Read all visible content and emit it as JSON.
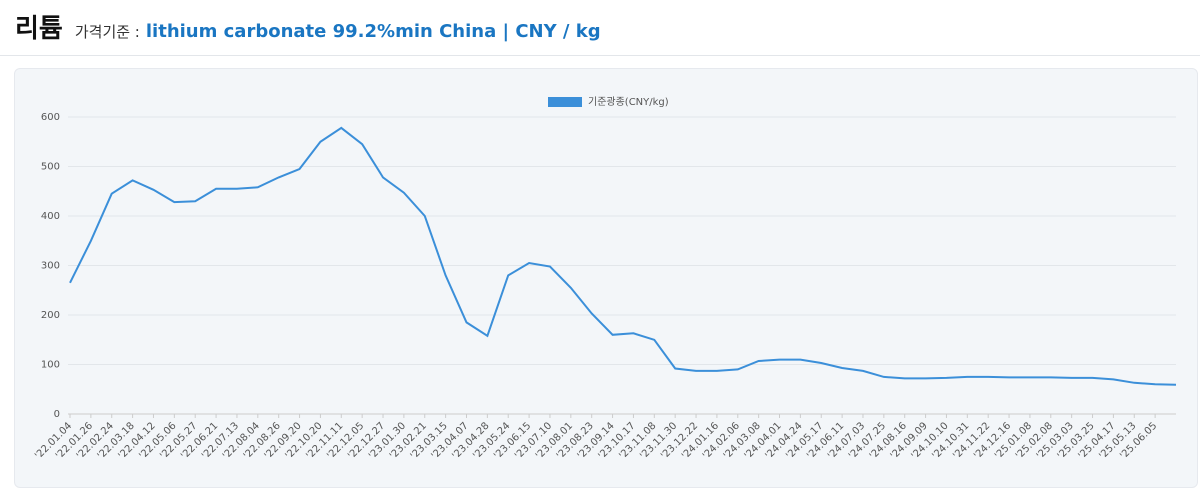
{
  "header": {
    "title": "리튬",
    "label": "가격기준 :",
    "subtitle": "lithium carbonate 99.2%min China | CNY / kg"
  },
  "chart_data": {
    "type": "line",
    "categories": [
      "'22.01.04",
      "'22.01.26",
      "'22.02.24",
      "'22.03.18",
      "'22.04.12",
      "'22.05.06",
      "'22.05.27",
      "'22.06.21",
      "'22.07.13",
      "'22.08.04",
      "'22.08.26",
      "'22.09.20",
      "'22.10.20",
      "'22.11.11",
      "'22.12.05",
      "'22.12.27",
      "'23.01.30",
      "'23.02.21",
      "'23.03.15",
      "'23.04.07",
      "'23.04.28",
      "'23.05.24",
      "'23.06.15",
      "'23.07.10",
      "'23.08.01",
      "'23.08.23",
      "'23.09.14",
      "'23.10.17",
      "'23.11.08",
      "'23.11.30",
      "'23.12.22",
      "'24.01.16",
      "'24.02.06",
      "'24.03.08",
      "'24.04.01",
      "'24.04.24",
      "'24.05.17",
      "'24.06.11",
      "'24.07.03",
      "'24.07.25",
      "'24.08.16",
      "'24.09.09",
      "'24.10.10",
      "'24.10.31",
      "'24.11.22",
      "'24.12.16",
      "'25.01.08",
      "'25.02.08",
      "'25.03.03",
      "'25.03.25",
      "'25.04.17",
      "'25.05.13",
      "'25.06.05",
      null
    ],
    "series": [
      {
        "name": "기준광종(CNY/kg)",
        "color": "#3b8fd9",
        "values": [
          265,
          350,
          445,
          472,
          453,
          428,
          430,
          455,
          455,
          458,
          478,
          495,
          550,
          578,
          545,
          478,
          447,
          400,
          280,
          185,
          158,
          280,
          305,
          298,
          255,
          203,
          160,
          163,
          150,
          92,
          87,
          87,
          90,
          107,
          110,
          110,
          103,
          93,
          87,
          75,
          72,
          72,
          73,
          75,
          75,
          74,
          74,
          74,
          73,
          73,
          70,
          63,
          60,
          59
        ]
      }
    ],
    "ylim": [
      0,
      600
    ],
    "yticks": [
      0,
      100,
      200,
      300,
      400,
      500,
      600
    ],
    "grid": true,
    "legend": "top"
  }
}
